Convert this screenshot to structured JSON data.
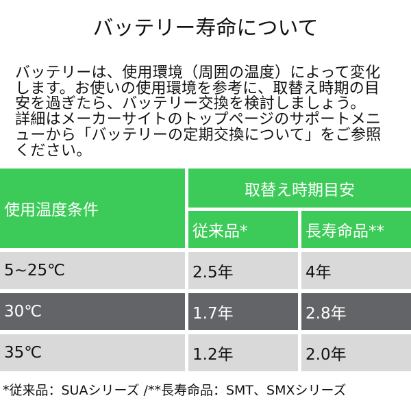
{
  "title": "バッテリー寿命について",
  "description_lines": [
    "バッテリーは、使用環境（周囲の温度）によって変化",
    "します。お使いの使用環境を参考に、取替え時期の目",
    "安を過ぎたら、バッテリー交換を検討しましょう。",
    "詳細はメーカーサイトのトップページのサポートメニ",
    "ューから「バッテリーの定期交換について」をご参照",
    "ください。"
  ],
  "table": {
    "header_condition": "使用温度条件",
    "header_group": "取替え時期目安",
    "header_standard": "従来品*",
    "header_long": "長寿命品**",
    "rows": [
      {
        "temp": "5~25℃",
        "standard": "2.5年",
        "long": "4年"
      },
      {
        "temp": "30℃",
        "standard": "1.7年",
        "long": "2.8年"
      },
      {
        "temp": "35℃",
        "standard": "1.2年",
        "long": "2.0年"
      }
    ]
  },
  "footer": "*従来品：SUAシリーズ /**長寿命品：SMT、SMXシリーズ",
  "colors": {
    "header_green": "#3ccb58",
    "row_light": "#d9d9d9",
    "row_dark": "#636467"
  }
}
